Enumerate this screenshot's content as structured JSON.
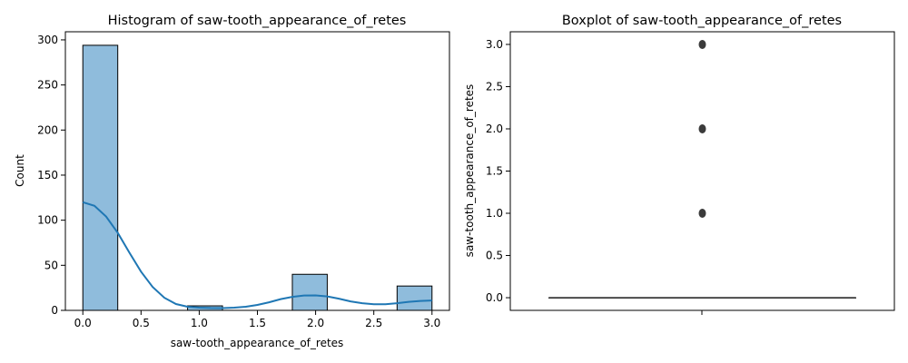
{
  "chart_data": [
    {
      "type": "bar",
      "title": "Histogram of saw-tooth_appearance_of_retes",
      "xlabel": "saw-tooth_appearance_of_retes",
      "ylabel": "Count",
      "xlim": [
        -0.15,
        3.15
      ],
      "ylim": [
        0,
        309
      ],
      "xticks": [
        "0.0",
        "0.5",
        "1.0",
        "1.5",
        "2.0",
        "2.5",
        "3.0"
      ],
      "yticks": [
        "0",
        "50",
        "100",
        "150",
        "200",
        "250",
        "300"
      ],
      "bins": [
        {
          "x0": 0.0,
          "x1": 0.3,
          "count": 294
        },
        {
          "x0": 0.3,
          "x1": 0.6,
          "count": 0
        },
        {
          "x0": 0.6,
          "x1": 0.9,
          "count": 0
        },
        {
          "x0": 0.9,
          "x1": 1.2,
          "count": 5
        },
        {
          "x0": 1.2,
          "x1": 1.5,
          "count": 0
        },
        {
          "x0": 1.5,
          "x1": 1.8,
          "count": 0
        },
        {
          "x0": 1.8,
          "x1": 2.1,
          "count": 40
        },
        {
          "x0": 2.1,
          "x1": 2.4,
          "count": 0
        },
        {
          "x0": 2.4,
          "x1": 2.7,
          "count": 0
        },
        {
          "x0": 2.7,
          "x1": 3.0,
          "count": 27
        }
      ],
      "kde": [
        [
          0.0,
          120
        ],
        [
          0.1,
          116
        ],
        [
          0.2,
          104
        ],
        [
          0.3,
          86
        ],
        [
          0.4,
          64
        ],
        [
          0.5,
          43
        ],
        [
          0.6,
          26
        ],
        [
          0.7,
          14
        ],
        [
          0.8,
          7
        ],
        [
          0.9,
          4
        ],
        [
          1.0,
          3
        ],
        [
          1.1,
          2.6
        ],
        [
          1.2,
          2.5
        ],
        [
          1.3,
          3
        ],
        [
          1.4,
          4
        ],
        [
          1.5,
          6
        ],
        [
          1.6,
          9
        ],
        [
          1.7,
          12.5
        ],
        [
          1.8,
          15
        ],
        [
          1.9,
          16.5
        ],
        [
          2.0,
          16.6
        ],
        [
          2.1,
          15.5
        ],
        [
          2.2,
          13
        ],
        [
          2.3,
          10
        ],
        [
          2.4,
          8
        ],
        [
          2.5,
          6.8
        ],
        [
          2.6,
          6.8
        ],
        [
          2.7,
          8
        ],
        [
          2.8,
          9.5
        ],
        [
          2.9,
          10.5
        ],
        [
          3.0,
          11
        ]
      ],
      "bar_color": "#8fbcdc",
      "line_color": "#1f77b4"
    },
    {
      "type": "box",
      "title": "Boxplot of saw-tooth_appearance_of_retes",
      "xlabel": "",
      "ylabel": "saw-tooth_appearance_of_retes",
      "ylim": [
        -0.15,
        3.15
      ],
      "yticks": [
        "0.0",
        "0.5",
        "1.0",
        "1.5",
        "2.0",
        "2.5",
        "3.0"
      ],
      "median": 0,
      "q1": 0,
      "q3": 0,
      "whisker_low": 0,
      "whisker_high": 0,
      "outliers": [
        1.0,
        2.0,
        3.0
      ],
      "color": "#3b3b3b"
    }
  ]
}
